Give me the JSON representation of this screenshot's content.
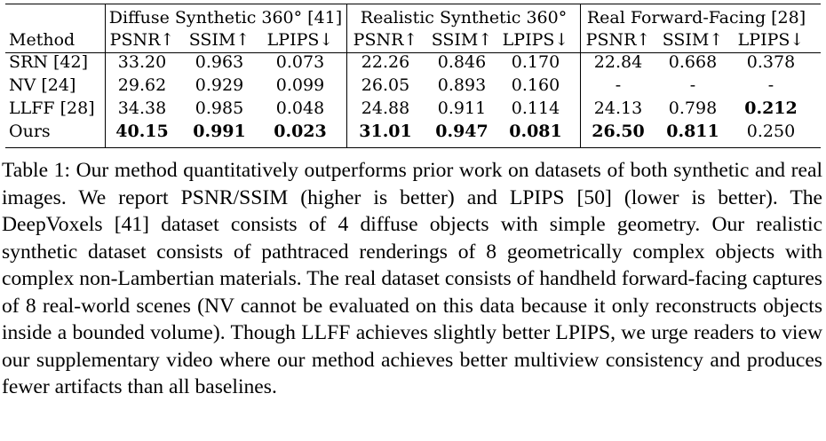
{
  "table": {
    "stub_header": "Method",
    "groups": [
      {
        "title": "Diffuse Synthetic 360° [41]",
        "metrics": [
          "PSNR↑",
          "SSIM↑",
          "LPIPS↓"
        ]
      },
      {
        "title": "Realistic Synthetic 360°",
        "metrics": [
          "PSNR↑",
          "SSIM↑",
          "LPIPS↓"
        ]
      },
      {
        "title": "Real Forward-Facing [28]",
        "metrics": [
          "PSNR↑",
          "SSIM↑",
          "LPIPS↓"
        ]
      }
    ],
    "rows": [
      {
        "method": "SRN [42]",
        "values": [
          "33.20",
          "0.963",
          "0.073",
          "22.26",
          "0.846",
          "0.170",
          "22.84",
          "0.668",
          "0.378"
        ],
        "bold": [
          false,
          false,
          false,
          false,
          false,
          false,
          false,
          false,
          false
        ]
      },
      {
        "method": "NV [24]",
        "values": [
          "29.62",
          "0.929",
          "0.099",
          "26.05",
          "0.893",
          "0.160",
          "-",
          "-",
          "-"
        ],
        "bold": [
          false,
          false,
          false,
          false,
          false,
          false,
          false,
          false,
          false
        ]
      },
      {
        "method": "LLFF [28]",
        "values": [
          "34.38",
          "0.985",
          "0.048",
          "24.88",
          "0.911",
          "0.114",
          "24.13",
          "0.798",
          "0.212"
        ],
        "bold": [
          false,
          false,
          false,
          false,
          false,
          false,
          false,
          false,
          true
        ]
      },
      {
        "method": "Ours",
        "values": [
          "40.15",
          "0.991",
          "0.023",
          "31.01",
          "0.947",
          "0.081",
          "26.50",
          "0.811",
          "0.250"
        ],
        "bold": [
          true,
          true,
          true,
          true,
          true,
          true,
          true,
          true,
          false
        ]
      }
    ]
  },
  "caption": "Table 1: Our method quantitatively outperforms prior work on datasets of both synthetic and real images. We report PSNR/SSIM (higher is better) and LPIPS [50] (lower is better). The DeepVoxels [41] dataset consists of 4 diffuse objects with simple geometry. Our realistic synthetic dataset consists of pathtraced renderings of 8 geometrically complex objects with complex non-Lambertian materials. The real dataset consists of handheld forward-facing captures of 8 real-world scenes (NV cannot be evaluated on this data because it only reconstructs objects inside a bounded volume). Though LLFF achieves slightly better LPIPS, we urge readers to view our supplementary video where our method achieves better multiview consistency and produces fewer artifacts than all baselines."
}
